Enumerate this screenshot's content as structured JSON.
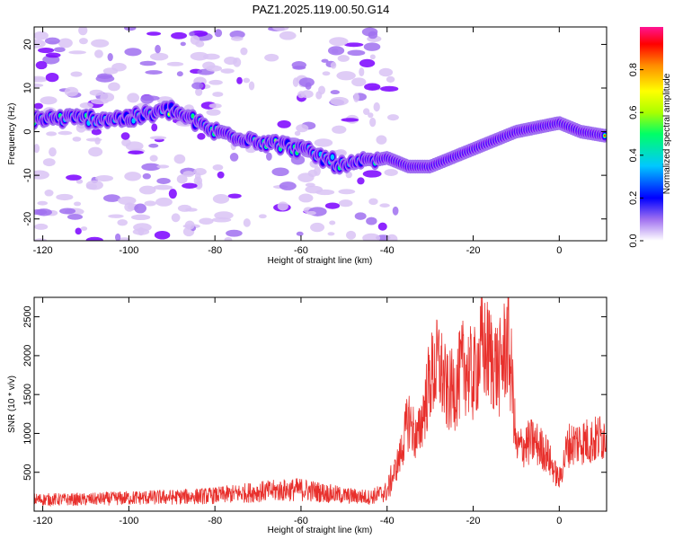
{
  "title": "PAZ1.2025.119.00.50.G14",
  "chart_data": [
    {
      "type": "heatmap",
      "xlabel": "Height of straight line (km)",
      "ylabel": "Frequency (Hz)",
      "xlim": [
        -122,
        11
      ],
      "ylim": [
        -25,
        24
      ],
      "xticks": [
        -120,
        -100,
        -80,
        -60,
        -40,
        -20,
        0
      ],
      "yticks": [
        -20,
        -10,
        0,
        10,
        20
      ],
      "colorbar": {
        "label": "Normalized spectral amplitude",
        "range": [
          0,
          1
        ],
        "ticks": [
          "0.0",
          "0.2",
          "0.4",
          "0.6",
          "0.8"
        ],
        "colors": [
          "#ffffff",
          "#d9c3f5",
          "#a070f0",
          "#7a00ff",
          "#0000ff",
          "#00c8ff",
          "#00ff66",
          "#aaff00",
          "#ffff00",
          "#ff8c00",
          "#ff0000",
          "#ff1493"
        ]
      },
      "ridge": [
        [
          -100,
          3
        ],
        [
          -90,
          5
        ],
        [
          -80,
          0
        ],
        [
          -70,
          -2
        ],
        [
          -60,
          -4
        ],
        [
          -50,
          -8
        ],
        [
          -40,
          -6
        ],
        [
          -35,
          -8
        ],
        [
          -30,
          -8
        ],
        [
          -25,
          -6
        ],
        [
          -20,
          -4
        ],
        [
          -15,
          -2
        ],
        [
          -10,
          0
        ],
        [
          -5,
          1
        ],
        [
          0,
          2
        ],
        [
          5,
          0
        ],
        [
          11,
          -1
        ]
      ]
    },
    {
      "type": "line",
      "xlabel": "Height of straight line (km)",
      "ylabel": "SNR (10 * v/v)",
      "xlim": [
        -122,
        11
      ],
      "ylim": [
        0,
        2750
      ],
      "xticks": [
        -120,
        -100,
        -80,
        -60,
        -40,
        -20,
        0
      ],
      "yticks": [
        500,
        1000,
        1500,
        2000,
        2500
      ],
      "color": "#e8302c",
      "envelope": [
        [
          -122,
          150
        ],
        [
          -110,
          150
        ],
        [
          -100,
          170
        ],
        [
          -90,
          180
        ],
        [
          -80,
          200
        ],
        [
          -70,
          250
        ],
        [
          -60,
          280
        ],
        [
          -50,
          200
        ],
        [
          -44,
          180
        ],
        [
          -40,
          250
        ],
        [
          -37,
          700
        ],
        [
          -35,
          1200
        ],
        [
          -33,
          900
        ],
        [
          -30,
          1700
        ],
        [
          -28,
          1900
        ],
        [
          -26,
          1500
        ],
        [
          -24,
          1600
        ],
        [
          -22,
          1900
        ],
        [
          -20,
          1700
        ],
        [
          -18,
          2100
        ],
        [
          -16,
          2000
        ],
        [
          -14,
          1800
        ],
        [
          -12,
          2200
        ],
        [
          -11,
          1700
        ],
        [
          -10,
          800
        ],
        [
          -6,
          900
        ],
        [
          -3,
          750
        ],
        [
          -1,
          500
        ],
        [
          0,
          400
        ],
        [
          2,
          850
        ],
        [
          5,
          900
        ],
        [
          8,
          900
        ],
        [
          11,
          1000
        ]
      ]
    }
  ]
}
